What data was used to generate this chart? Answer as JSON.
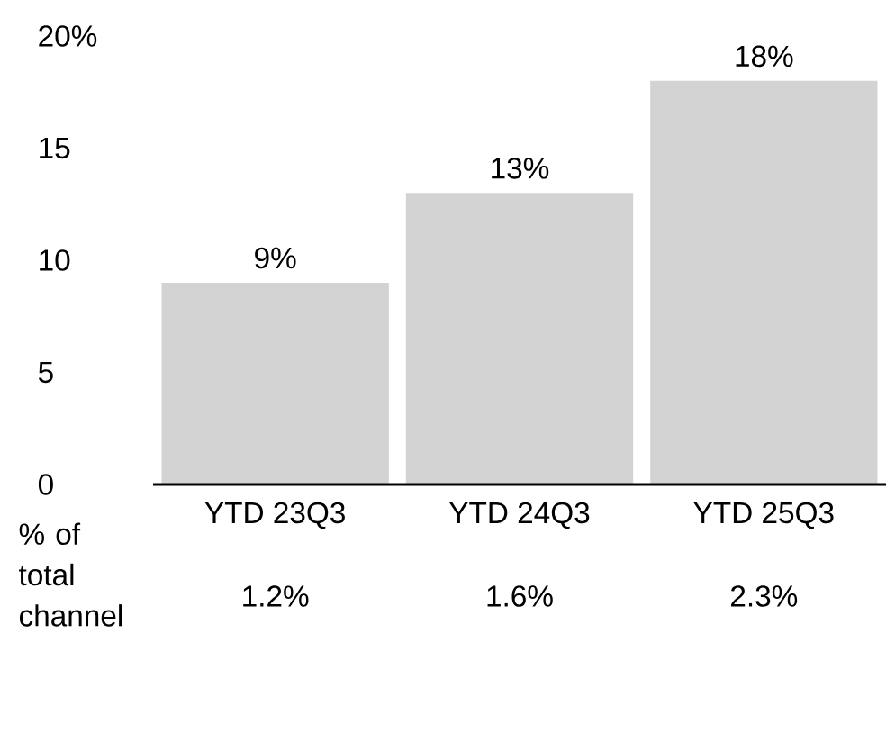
{
  "chart_data": {
    "type": "bar",
    "categories": [
      "YTD 23Q3",
      "YTD 24Q3",
      "YTD 25Q3"
    ],
    "values": [
      9,
      13,
      18
    ],
    "value_labels": [
      "9%",
      "13%",
      "18%"
    ],
    "color": "#d3d3d3",
    "ylim": [
      0,
      20
    ],
    "yticks": [
      0,
      5,
      10,
      15,
      {
        "value": 20,
        "label": "20%"
      }
    ],
    "annotations": [
      "% of total channel",
      "1.2%",
      "1.6%",
      "2.3%"
    ]
  }
}
